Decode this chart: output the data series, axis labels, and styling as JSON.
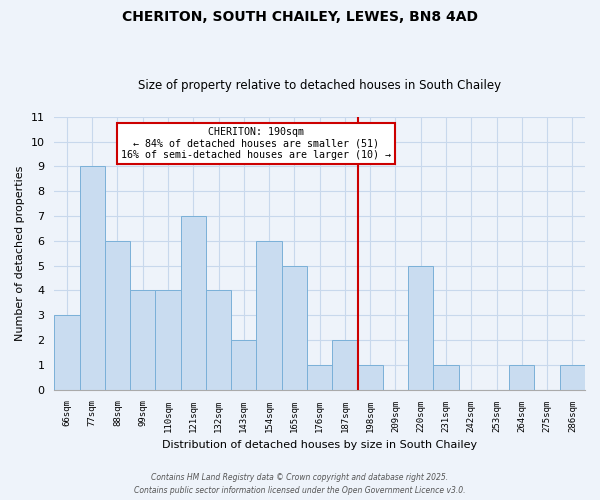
{
  "title": "CHERITON, SOUTH CHAILEY, LEWES, BN8 4AD",
  "subtitle": "Size of property relative to detached houses in South Chailey",
  "xlabel": "Distribution of detached houses by size in South Chailey",
  "ylabel": "Number of detached properties",
  "bin_labels": [
    "66sqm",
    "77sqm",
    "88sqm",
    "99sqm",
    "110sqm",
    "121sqm",
    "132sqm",
    "143sqm",
    "154sqm",
    "165sqm",
    "176sqm",
    "187sqm",
    "198sqm",
    "209sqm",
    "220sqm",
    "231sqm",
    "242sqm",
    "253sqm",
    "264sqm",
    "275sqm",
    "286sqm"
  ],
  "bar_values": [
    3,
    9,
    6,
    4,
    4,
    7,
    4,
    2,
    6,
    5,
    1,
    2,
    1,
    0,
    5,
    1,
    0,
    0,
    1,
    0,
    1
  ],
  "bar_color": "#c9dcf0",
  "bar_edge_color": "#7ab0d8",
  "ylim": [
    0,
    11
  ],
  "yticks": [
    0,
    1,
    2,
    3,
    4,
    5,
    6,
    7,
    8,
    9,
    10,
    11
  ],
  "annotation_title": "CHERITON: 190sqm",
  "annotation_line1": "← 84% of detached houses are smaller (51)",
  "annotation_line2": "16% of semi-detached houses are larger (10) →",
  "annotation_box_color": "#ffffff",
  "annotation_box_edge_color": "#cc0000",
  "vline_color": "#cc0000",
  "footer_line1": "Contains HM Land Registry data © Crown copyright and database right 2025.",
  "footer_line2": "Contains public sector information licensed under the Open Government Licence v3.0.",
  "background_color": "#eef3fa",
  "grid_color": "#c8d8ec"
}
